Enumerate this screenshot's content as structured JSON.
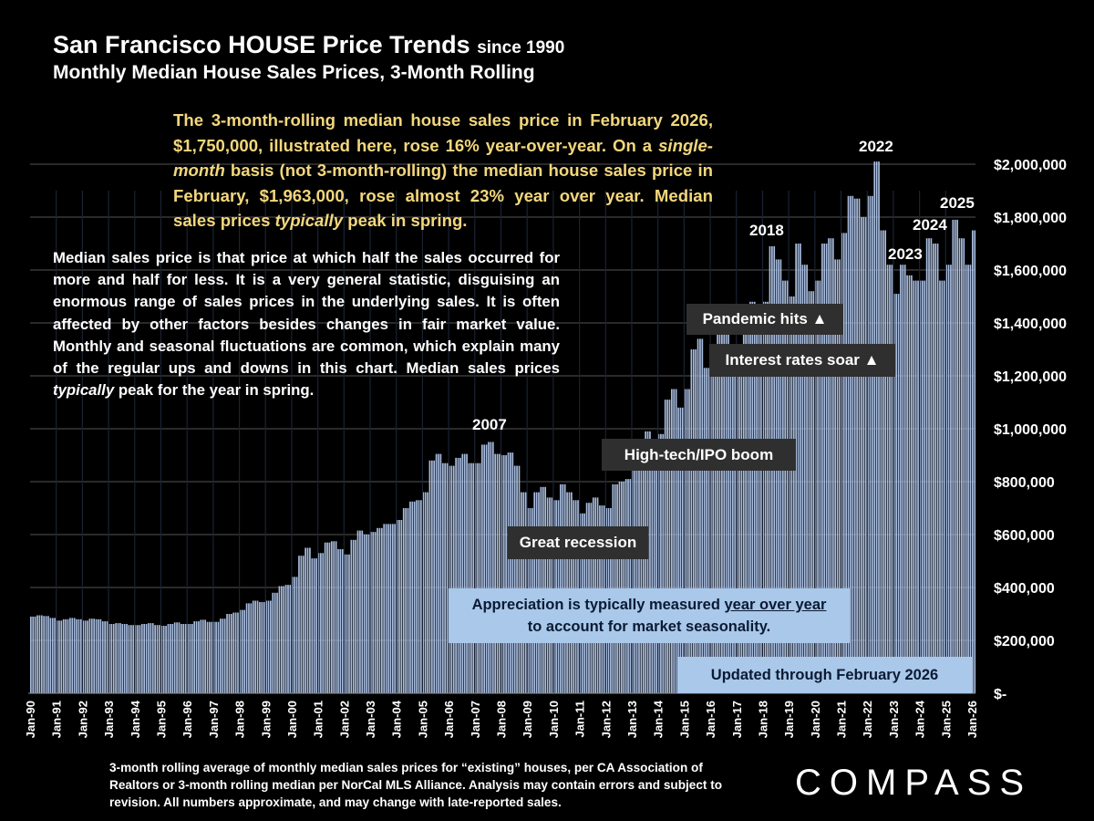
{
  "header": {
    "title_main": "San Francisco HOUSE Price Trends",
    "title_suffix": "since 1990",
    "subtitle": "Monthly Median House Sales Prices, 3-Month Rolling"
  },
  "notes": {
    "yellow_parts": [
      "The 3-month-rolling median house sales price in February 2026, $1,750,000, illustrated here, rose 16% year-over-year. On a ",
      "single-month",
      " basis (not 3-month-rolling) the median house sales price in February, $1,963,000, rose almost 23% year over year. Median sales prices ",
      "typically",
      " peak in spring."
    ],
    "white_parts": [
      "Median sales price is that price at which half the sales occurred for more and half for less. It is a very general statistic, disguising an enormous range of sales prices in the underlying sales. It is often affected by other factors besides changes in fair market value. Monthly and seasonal fluctuations are common, which explain many of the regular ups and downs in this chart. Median sales prices ",
      "typically",
      " peak for the year in spring."
    ]
  },
  "annotations": {
    "pandemic": "Pandemic hits ▲",
    "rates": "Interest rates soar ▲",
    "hightech": "High-tech/IPO boom",
    "recession": "Great recession",
    "apprec_line1_pre": "Appreciation is typically measured ",
    "apprec_line1_u": "year over year",
    "apprec_line2": "to account for market seasonality.",
    "updated": "Updated through February 2026",
    "years": {
      "y2007": "2007",
      "y2018": "2018",
      "y2022": "2022",
      "y2023": "2023",
      "y2024": "2024",
      "y2025": "2025"
    }
  },
  "footer": {
    "text": "3-month rolling average of monthly median sales prices for “existing” houses, per CA Association of Realtors or 3-month rolling median per NorCal MLS Alliance. Analysis may contain errors and subject to revision. All numbers approximate, and may change with late-reported sales.",
    "logo": "COMPASS"
  },
  "chart_data": {
    "type": "bar",
    "title": "San Francisco HOUSE Price Trends since 1990",
    "subtitle": "Monthly Median House Sales Prices, 3-Month Rolling",
    "xlabel": "",
    "ylabel": "",
    "ylim": [
      0,
      2000000
    ],
    "y_ticks": [
      "$-",
      "$200,000",
      "$400,000",
      "$600,000",
      "$800,000",
      "$1,000,000",
      "$1,200,000",
      "$1,400,000",
      "$1,600,000",
      "$1,800,000",
      "$2,000,000"
    ],
    "x_ticks": [
      "Jan-90",
      "Jan-91",
      "Jan-92",
      "Jan-93",
      "Jan-94",
      "Jan-95",
      "Jan-96",
      "Jan-97",
      "Jan-98",
      "Jan-99",
      "Jan-00",
      "Jan-01",
      "Jan-02",
      "Jan-03",
      "Jan-04",
      "Jan-05",
      "Jan-06",
      "Jan-07",
      "Jan-08",
      "Jan-09",
      "Jan-10",
      "Jan-11",
      "Jan-12",
      "Jan-13",
      "Jan-14",
      "Jan-15",
      "Jan-16",
      "Jan-17",
      "Jan-18",
      "Jan-19",
      "Jan-20",
      "Jan-21",
      "Jan-22",
      "Jan-23",
      "Jan-24",
      "Jan-25",
      "Jan-26"
    ],
    "y_axis_position": "right",
    "grid": true,
    "bar_color": "#a8bde0",
    "sampled_months": [
      "Jan",
      "Apr",
      "Jul",
      "Oct"
    ],
    "values_by_year": {
      "1990": [
        290000,
        295000,
        292000,
        285000
      ],
      "1991": [
        275000,
        280000,
        285000,
        280000
      ],
      "1992": [
        275000,
        282000,
        280000,
        272000
      ],
      "1993": [
        262000,
        265000,
        262000,
        258000
      ],
      "1994": [
        258000,
        262000,
        265000,
        258000
      ],
      "1995": [
        255000,
        262000,
        268000,
        262000
      ],
      "1996": [
        262000,
        272000,
        278000,
        270000
      ],
      "1997": [
        270000,
        282000,
        300000,
        305000
      ],
      "1998": [
        315000,
        340000,
        350000,
        345000
      ],
      "1999": [
        350000,
        380000,
        405000,
        410000
      ],
      "2000": [
        440000,
        520000,
        550000,
        510000
      ],
      "2001": [
        530000,
        570000,
        575000,
        545000
      ],
      "2002": [
        525000,
        580000,
        615000,
        600000
      ],
      "2003": [
        610000,
        625000,
        640000,
        640000
      ],
      "2004": [
        655000,
        700000,
        725000,
        730000
      ],
      "2005": [
        760000,
        880000,
        905000,
        870000
      ],
      "2006": [
        860000,
        890000,
        905000,
        870000
      ],
      "2007": [
        870000,
        940000,
        950000,
        905000
      ],
      "2008": [
        900000,
        910000,
        860000,
        760000
      ],
      "2009": [
        700000,
        760000,
        780000,
        740000
      ],
      "2010": [
        730000,
        790000,
        760000,
        730000
      ],
      "2011": [
        680000,
        720000,
        740000,
        710000
      ],
      "2012": [
        700000,
        790000,
        800000,
        810000
      ],
      "2013": [
        860000,
        960000,
        990000,
        940000
      ],
      "2014": [
        980000,
        1110000,
        1150000,
        1080000
      ],
      "2015": [
        1150000,
        1300000,
        1340000,
        1230000
      ],
      "2016": [
        1260000,
        1360000,
        1390000,
        1280000
      ],
      "2017": [
        1310000,
        1450000,
        1480000,
        1400000
      ],
      "2018": [
        1480000,
        1690000,
        1640000,
        1560000
      ],
      "2019": [
        1500000,
        1700000,
        1620000,
        1520000
      ],
      "2020": [
        1560000,
        1700000,
        1720000,
        1640000
      ],
      "2021": [
        1740000,
        1880000,
        1870000,
        1800000
      ],
      "2022": [
        1880000,
        2010000,
        1750000,
        1620000
      ],
      "2023": [
        1510000,
        1620000,
        1580000,
        1560000
      ],
      "2024": [
        1560000,
        1720000,
        1700000,
        1560000
      ],
      "2025": [
        1620000,
        1790000,
        1720000,
        1620000
      ]
    },
    "latest": {
      "month": "Feb-26",
      "value": 1750000
    }
  }
}
